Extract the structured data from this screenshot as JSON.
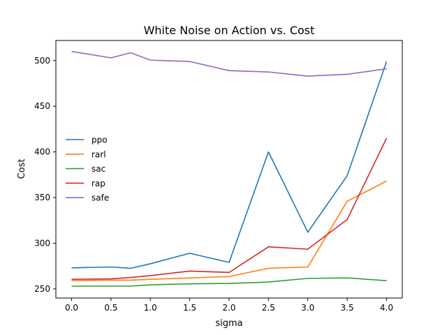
{
  "chart_data": {
    "type": "line",
    "title": "White Noise on Action vs. Cost",
    "xlabel": "sigma",
    "ylabel": "Cost",
    "xlim": [
      -0.2,
      4.2
    ],
    "ylim": [
      240,
      522
    ],
    "xticks": [
      "0.0",
      "0.5",
      "1.0",
      "1.5",
      "2.0",
      "2.5",
      "3.0",
      "3.5",
      "4.0"
    ],
    "yticks": [
      "250",
      "300",
      "350",
      "400",
      "450",
      "500"
    ],
    "grid": false,
    "legend_position": "center-left",
    "x": [
      0.0,
      0.5,
      0.75,
      1.0,
      1.5,
      2.0,
      2.5,
      3.0,
      3.5,
      4.0
    ],
    "series": [
      {
        "name": "ppo",
        "color": "#1f77b4",
        "values": [
          273,
          274,
          272.5,
          277.5,
          289,
          279,
          400,
          312,
          374,
          499
        ]
      },
      {
        "name": "rarl",
        "color": "#ff7f0e",
        "values": [
          259,
          259.5,
          259.5,
          260.5,
          262,
          263.5,
          272.5,
          274,
          346,
          368
        ]
      },
      {
        "name": "sac",
        "color": "#2ca02c",
        "values": [
          253,
          253,
          253,
          254.5,
          255.5,
          256,
          257.5,
          261.5,
          262,
          259
        ]
      },
      {
        "name": "rap",
        "color": "#d62728",
        "values": [
          260.5,
          261,
          262.5,
          264.5,
          269.5,
          268,
          296,
          293.5,
          326,
          415
        ]
      },
      {
        "name": "safe",
        "color": "#9467bd",
        "values": [
          510,
          503,
          508.5,
          500.5,
          499,
          489,
          487.5,
          483,
          485,
          491
        ]
      }
    ]
  }
}
